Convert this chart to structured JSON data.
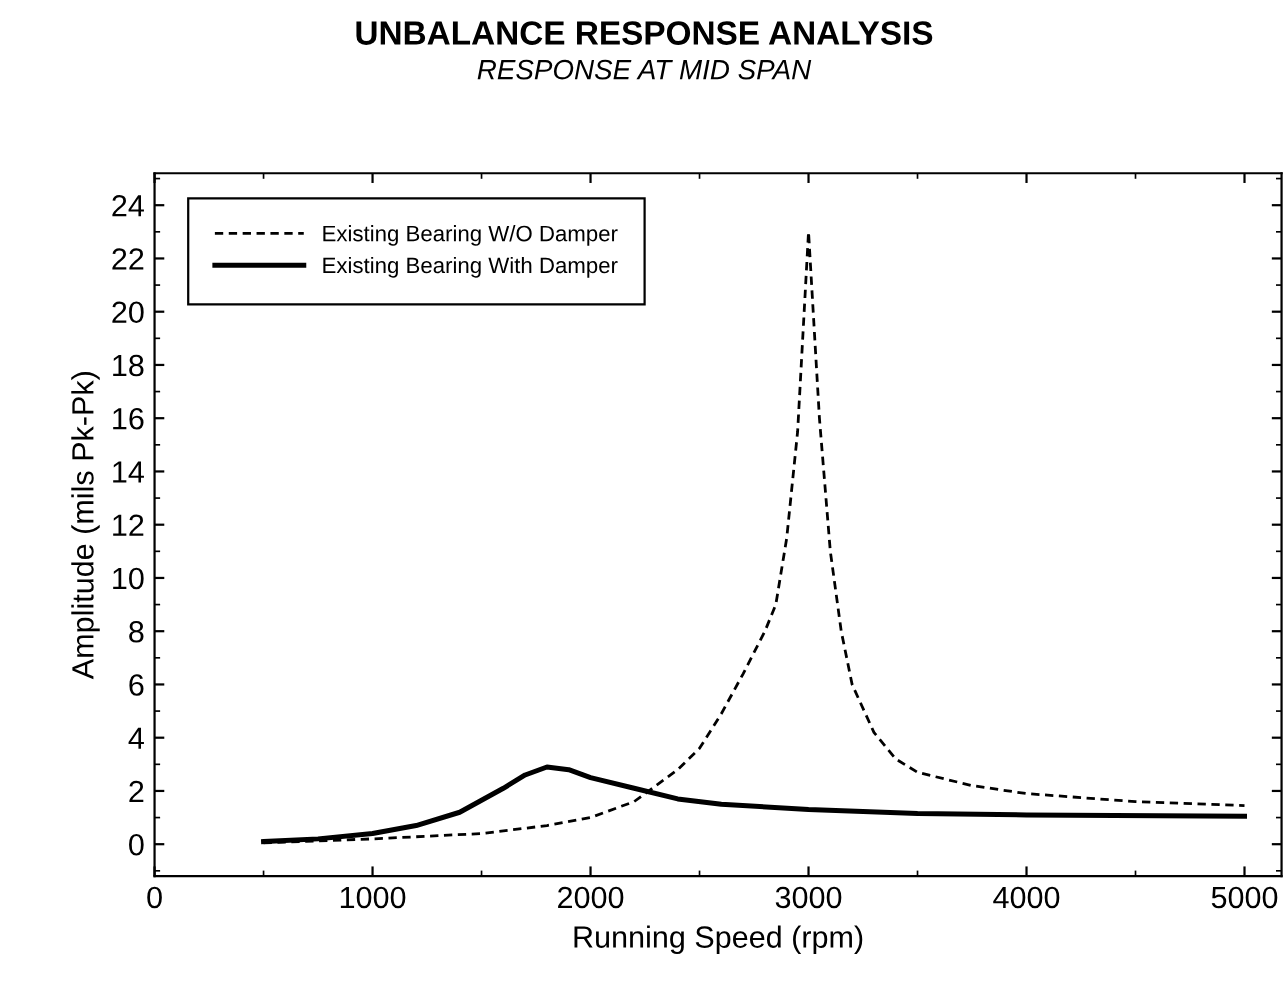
{
  "chart_data": {
    "type": "line",
    "title": "UNBALANCE RESPONSE ANALYSIS",
    "subtitle": "RESPONSE AT MID SPAN",
    "xlabel": "Running Speed (rpm)",
    "ylabel": "Amplitude (mils Pk-Pk)",
    "xlim": [
      0,
      5170
    ],
    "ylim": [
      -1.2,
      25.2
    ],
    "xticks": [
      0,
      1000,
      2000,
      3000,
      4000,
      5000
    ],
    "yticks": [
      0,
      2,
      4,
      6,
      8,
      10,
      12,
      14,
      16,
      18,
      20,
      22,
      24
    ],
    "grid": false,
    "legend": "top left",
    "marker": "none",
    "series": [
      {
        "name": "Existing Bearing W/O Damper",
        "color": "#000000",
        "line_style": "dashed",
        "x": [
          500,
          1000,
          1500,
          1800,
          2000,
          2200,
          2400,
          2500,
          2600,
          2700,
          2800,
          2850,
          2900,
          2950,
          3000,
          3050,
          3100,
          3150,
          3200,
          3300,
          3400,
          3500,
          3750,
          4000,
          4500,
          5000
        ],
        "values": [
          0.05,
          0.2,
          0.4,
          0.7,
          1.0,
          1.6,
          2.8,
          3.6,
          4.9,
          6.4,
          8.0,
          9.0,
          11.5,
          15.5,
          23.0,
          16.0,
          11.0,
          8.0,
          6.0,
          4.2,
          3.2,
          2.7,
          2.2,
          1.9,
          1.6,
          1.45
        ]
      },
      {
        "name": "Existing Bearing With Damper",
        "color": "#000000",
        "line_style": "solid",
        "x": [
          500,
          750,
          1000,
          1200,
          1400,
          1600,
          1700,
          1800,
          1900,
          2000,
          2200,
          2400,
          2600,
          3000,
          3500,
          4000,
          5000
        ],
        "values": [
          0.1,
          0.2,
          0.4,
          0.7,
          1.2,
          2.1,
          2.6,
          2.9,
          2.8,
          2.5,
          2.1,
          1.7,
          1.5,
          1.3,
          1.15,
          1.1,
          1.05
        ]
      }
    ]
  }
}
